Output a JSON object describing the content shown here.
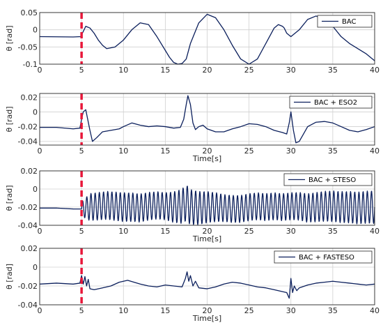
{
  "colors": {
    "series": "#0b1f5c",
    "marker": "#e8173a",
    "grid": "#d0d0d0",
    "axis": "#262626"
  },
  "chart_data": [
    {
      "type": "line",
      "series": [
        {
          "name": "BAC",
          "x": [
            0,
            4,
            4.9,
            5,
            5.5,
            6,
            6.5,
            7,
            7.5,
            8,
            9,
            10,
            11,
            12,
            13,
            14,
            15,
            15.5,
            16,
            16.5,
            17,
            17.5,
            18,
            19,
            20,
            21,
            22,
            23,
            24,
            25,
            26,
            27,
            28,
            28.5,
            29,
            29.2,
            29.5,
            30,
            31,
            32,
            33,
            34,
            35,
            36,
            37,
            38,
            39,
            40
          ],
          "y": [
            -0.02,
            -0.021,
            -0.02,
            -0.015,
            0.01,
            0.005,
            -0.01,
            -0.03,
            -0.045,
            -0.055,
            -0.05,
            -0.03,
            0.0,
            0.02,
            0.015,
            -0.02,
            -0.06,
            -0.08,
            -0.095,
            -0.1,
            -0.098,
            -0.085,
            -0.04,
            0.02,
            0.045,
            0.035,
            0.0,
            -0.045,
            -0.085,
            -0.1,
            -0.085,
            -0.04,
            0.005,
            0.015,
            0.01,
            0.005,
            -0.01,
            -0.02,
            0.0,
            0.03,
            0.04,
            0.03,
            0.01,
            -0.02,
            -0.04,
            -0.055,
            -0.07,
            -0.09
          ]
        }
      ],
      "xlim": [
        0,
        40
      ],
      "ylim": [
        -0.1,
        0.05
      ],
      "xticks": [
        0,
        5,
        10,
        15,
        20,
        25,
        30,
        35,
        40
      ],
      "yticks": [
        -0.1,
        -0.05,
        0,
        0.05
      ],
      "ytick_labels": [
        "-0.1",
        "-0.05",
        "0",
        "0.05"
      ],
      "xlabel": "",
      "ylabel": "θ [rad]",
      "grid": true,
      "legend": "top-right",
      "marker_x": 5
    },
    {
      "type": "line",
      "series": [
        {
          "name": "BAC + ESO2",
          "x": [
            0,
            2,
            4,
            4.8,
            5,
            5.2,
            5.5,
            6,
            6.3,
            6.8,
            7.5,
            8.5,
            9.5,
            10,
            11,
            12,
            13,
            14,
            15,
            16,
            16.8,
            17.2,
            17.5,
            17.7,
            18,
            18.3,
            18.6,
            19,
            19.5,
            20,
            21,
            22,
            23,
            24,
            25,
            26,
            27,
            28,
            29,
            29.5,
            29.8,
            30,
            30.3,
            30.6,
            31,
            31.5,
            32,
            33,
            34,
            35,
            36,
            37,
            38,
            39,
            40
          ],
          "y": [
            -0.021,
            -0.021,
            -0.023,
            -0.022,
            -0.01,
            0.0,
            0.003,
            -0.025,
            -0.04,
            -0.035,
            -0.027,
            -0.025,
            -0.023,
            -0.02,
            -0.015,
            -0.018,
            -0.02,
            -0.019,
            -0.02,
            -0.022,
            -0.021,
            -0.01,
            0.01,
            0.022,
            0.01,
            -0.015,
            -0.024,
            -0.02,
            -0.018,
            -0.023,
            -0.027,
            -0.027,
            -0.023,
            -0.02,
            -0.016,
            -0.017,
            -0.02,
            -0.025,
            -0.028,
            -0.03,
            -0.015,
            0.0,
            -0.025,
            -0.042,
            -0.04,
            -0.03,
            -0.02,
            -0.014,
            -0.013,
            -0.015,
            -0.02,
            -0.025,
            -0.027,
            -0.024,
            -0.02
          ]
        }
      ],
      "xlim": [
        0,
        40
      ],
      "ylim": [
        -0.045,
        0.025
      ],
      "xticks": [
        0,
        5,
        10,
        15,
        20,
        25,
        30,
        35,
        40
      ],
      "yticks": [
        -0.04,
        -0.02,
        0,
        0.02
      ],
      "ytick_labels": [
        "-0.04",
        "-0.02",
        "0",
        "0.02"
      ],
      "xlabel": "Time[s]",
      "ylabel": "θ [rad]",
      "grid": true,
      "legend": "top-right",
      "marker_x": 5
    },
    {
      "type": "line",
      "series": [
        {
          "name": "BAC + STESO",
          "x": [
            0,
            2,
            4,
            5,
            6,
            7,
            8,
            9,
            10,
            11,
            12,
            13,
            14,
            15,
            16,
            17,
            17.5,
            18,
            19,
            20,
            21,
            22,
            23,
            24,
            25,
            26,
            27,
            28,
            29,
            30,
            31,
            32,
            33,
            34,
            35,
            36,
            37,
            38,
            39,
            40
          ],
          "y": [
            -0.021,
            -0.021,
            -0.022,
            -0.022,
            -0.02,
            -0.019,
            -0.018,
            -0.019,
            -0.02,
            -0.02,
            -0.021,
            -0.019,
            -0.018,
            -0.019,
            -0.02,
            -0.019,
            -0.015,
            -0.02,
            -0.021,
            -0.02,
            -0.02,
            -0.021,
            -0.022,
            -0.022,
            -0.02,
            -0.019,
            -0.02,
            -0.019,
            -0.02,
            -0.019,
            -0.019,
            -0.021,
            -0.02,
            -0.019,
            -0.019,
            -0.02,
            -0.02,
            -0.021,
            -0.02,
            -0.02
          ],
          "oscillation": {
            "start": 5,
            "period": 0.5,
            "amplitude": [
              [
                5,
                0.008
              ],
              [
                6,
                0.015
              ],
              [
                10,
                0.016
              ],
              [
                15,
                0.015
              ],
              [
                17.5,
                0.02
              ],
              [
                22,
                0.015
              ],
              [
                30,
                0.015
              ],
              [
                35,
                0.017
              ],
              [
                40,
                0.018
              ]
            ]
          }
        }
      ],
      "xlim": [
        0,
        40
      ],
      "ylim": [
        -0.04,
        0.02
      ],
      "xticks": [
        0,
        5,
        10,
        15,
        20,
        25,
        30,
        35,
        40
      ],
      "yticks": [
        -0.04,
        -0.02,
        0,
        0.02
      ],
      "ytick_labels": [
        "-0.04",
        "-0.02",
        "0",
        "0.02"
      ],
      "xlabel": "Time[s]",
      "ylabel": "θ [rad]",
      "grid": true,
      "legend": "top-right",
      "marker_x": 5
    },
    {
      "type": "line",
      "series": [
        {
          "name": "BAC + FASTESO",
          "x": [
            0,
            2,
            4,
            4.8,
            5,
            5.2,
            5.4,
            5.6,
            5.8,
            6,
            6.5,
            7.5,
            8.5,
            9.5,
            10.5,
            12,
            13,
            14,
            15,
            16,
            17,
            17.4,
            17.6,
            17.8,
            18,
            18.3,
            18.6,
            19,
            20,
            21,
            22,
            23,
            24,
            25,
            26,
            27,
            28,
            29,
            29.5,
            29.8,
            30,
            30.2,
            30.4,
            30.7,
            31,
            32,
            33,
            34,
            35,
            36,
            37,
            38,
            39,
            40
          ],
          "y": [
            -0.018,
            -0.017,
            -0.018,
            -0.017,
            -0.009,
            -0.018,
            -0.01,
            -0.02,
            -0.013,
            -0.023,
            -0.024,
            -0.022,
            -0.02,
            -0.016,
            -0.014,
            -0.018,
            -0.02,
            -0.021,
            -0.019,
            -0.02,
            -0.021,
            -0.012,
            -0.005,
            -0.015,
            -0.009,
            -0.02,
            -0.015,
            -0.022,
            -0.023,
            -0.021,
            -0.018,
            -0.016,
            -0.017,
            -0.019,
            -0.021,
            -0.022,
            -0.024,
            -0.026,
            -0.027,
            -0.033,
            -0.012,
            -0.027,
            -0.02,
            -0.025,
            -0.022,
            -0.019,
            -0.017,
            -0.016,
            -0.015,
            -0.016,
            -0.017,
            -0.018,
            -0.019,
            -0.018
          ]
        }
      ],
      "xlim": [
        0,
        40
      ],
      "ylim": [
        -0.04,
        0.02
      ],
      "xticks": [
        0,
        5,
        10,
        15,
        20,
        25,
        30,
        35,
        40
      ],
      "yticks": [
        -0.04,
        -0.02,
        0,
        0.02
      ],
      "ytick_labels": [
        "-0.04",
        "-0.02",
        "0",
        "0.02"
      ],
      "xlabel": "Time[s]",
      "ylabel": "θ [rad]",
      "grid": true,
      "legend": "top-right",
      "marker_x": 5
    }
  ]
}
